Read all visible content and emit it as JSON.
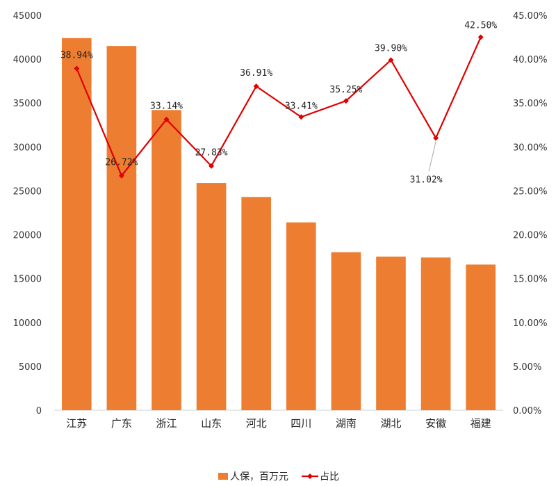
{
  "chart_data": {
    "type": "bar",
    "combo": "bar + line (secondary axis)",
    "categories": [
      "江苏",
      "广东",
      "浙江",
      "山东",
      "河北",
      "四川",
      "湖南",
      "湖北",
      "安徽",
      "福建"
    ],
    "series": [
      {
        "name": "人保，百万元",
        "type": "bar",
        "axis": "left",
        "color": "#ED7D31",
        "values": [
          42400,
          41500,
          34200,
          25900,
          24300,
          21400,
          18000,
          17500,
          17400,
          16600
        ]
      },
      {
        "name": "占比",
        "type": "line",
        "axis": "right",
        "color": "#E00000",
        "values": [
          38.94,
          26.72,
          33.14,
          27.83,
          36.91,
          33.41,
          35.25,
          39.9,
          31.02,
          42.5
        ],
        "data_labels": [
          "38.94%",
          "26.72%",
          "33.14%",
          "27.83%",
          "36.91%",
          "33.41%",
          "35.25%",
          "39.90%",
          "31.02%",
          "42.50%"
        ]
      }
    ],
    "left_axis": {
      "ylim": [
        0,
        45000
      ],
      "ticks": [
        "0",
        "5000",
        "10000",
        "15000",
        "20000",
        "25000",
        "30000",
        "35000",
        "40000",
        "45000"
      ]
    },
    "right_axis": {
      "ylim": [
        0,
        45
      ],
      "ticks": [
        "0.00%",
        "5.00%",
        "10.00%",
        "15.00%",
        "20.00%",
        "25.00%",
        "30.00%",
        "35.00%",
        "40.00%",
        "45.00%"
      ]
    },
    "grid": false,
    "legend": "bottom"
  }
}
